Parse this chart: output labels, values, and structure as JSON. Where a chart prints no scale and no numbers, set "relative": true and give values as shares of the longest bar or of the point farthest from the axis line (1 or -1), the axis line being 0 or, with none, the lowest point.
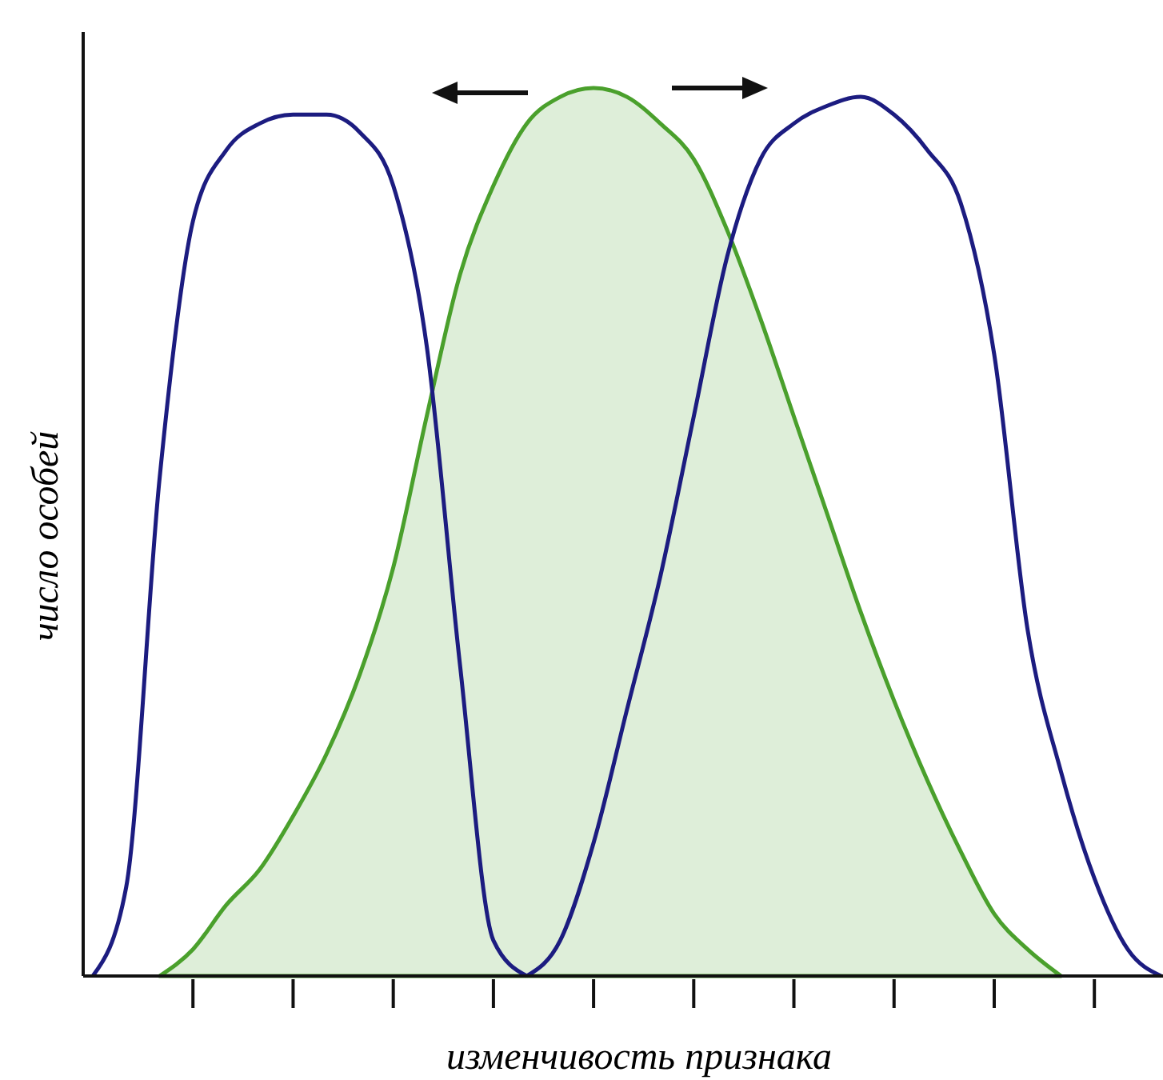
{
  "chart_data": {
    "type": "line",
    "relative": true,
    "xlabel": "изменчивость признака",
    "ylabel": "число особей",
    "legend": false,
    "line_style": "solid",
    "categories": [
      null,
      null,
      null,
      null,
      null,
      null,
      null,
      null,
      null,
      null,
      null,
      null,
      null,
      null,
      null,
      null,
      null,
      null,
      null,
      null,
      null,
      null,
      null,
      null,
      null,
      null,
      null,
      null,
      null,
      null,
      null,
      null,
      null
    ],
    "series": [
      {
        "color": "#1c1c80",
        "values": [
          0,
          0.1,
          0.56,
          0.85,
          0.93,
          0.96,
          0.97,
          0.97,
          0.95,
          0.89,
          0.71,
          0.35,
          0.04,
          0,
          null,
          null,
          null,
          null,
          null,
          null,
          null,
          null,
          null,
          null,
          null,
          null,
          null,
          null,
          null,
          null,
          null,
          null,
          null
        ]
      },
      {
        "type": "area",
        "color": "#4aa02c",
        "values": [
          null,
          null,
          0,
          0.03,
          0.08,
          0.12,
          0.18,
          0.25,
          0.34,
          0.46,
          0.63,
          0.79,
          0.89,
          0.96,
          0.99,
          1,
          0.99,
          0.96,
          0.92,
          0.84,
          0.74,
          0.63,
          0.52,
          0.41,
          0.31,
          0.22,
          0.14,
          0.07,
          0.03,
          0,
          null,
          null,
          null
        ]
      },
      {
        "color": "#1c1c80",
        "values": [
          null,
          null,
          null,
          null,
          null,
          null,
          null,
          null,
          null,
          null,
          null,
          null,
          null,
          0,
          0.04,
          0.15,
          0.3,
          0.45,
          0.63,
          0.81,
          0.92,
          0.96,
          0.98,
          0.99,
          0.97,
          0.93,
          0.87,
          0.7,
          0.39,
          0.23,
          0.11,
          0.03,
          0
        ]
      }
    ]
  }
}
